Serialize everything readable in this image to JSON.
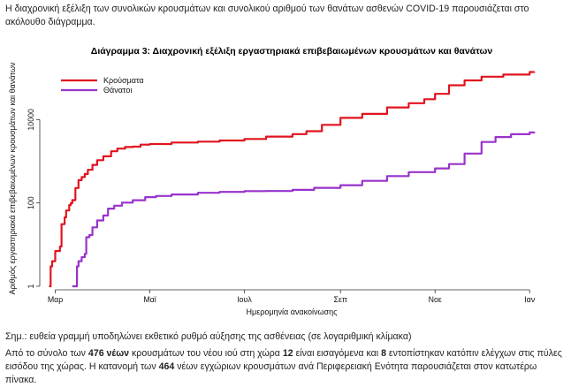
{
  "intro_text": "Η διαχρονική εξέλιξη των συνολικών κρουσμάτων και συνολικού αριθμού των θανάτων ασθενών COVID-19 παρουσιάζεται στο ακόλουθο διάγραμμα.",
  "note_text": "Σημ.: ευθεία γραμμή υποδηλώνει εκθετικό ρυθμό αύξησης της ασθένειας (σε λογαριθμική κλίμακα)",
  "outro": {
    "p1": "Από το σύνολο των ",
    "b1": "476 νέων",
    "p2": " κρουσμάτων του νέου ιού στη χώρα ",
    "b2": "12",
    "p3": " είναι εισαγόμενα και ",
    "b3": "8",
    "p4": " εντοπίστηκαν κατόπιν ελέγχων στις πύλες εισόδου της χώρας. Η κατανομή των ",
    "b4": "464",
    "p5": " νέων εγχώριων κρουσμάτων ανά Περιφερειακή Ενότητα παρουσιάζεται στον κατωτέρω πίνακα."
  },
  "chart_data": {
    "type": "line",
    "title": "Διάγραμμα 3: Διαχρονική εξέλιξη εργαστηριακά επιβεβαιωμένων κρουσμάτων και θανάτων",
    "xlabel": "Ημερομηνία ανακοίνωσης",
    "ylabel": "Αριθμός εργαστηριακά επιβεβαιωμένων κρουσμάτων και θανάτων",
    "y_scale": "log",
    "ylim": [
      1,
      200000
    ],
    "xlim": [
      "2020-02-20",
      "2021-01-10"
    ],
    "x_ticks": [
      {
        "date": "2020-03-01",
        "label": "Μαρ"
      },
      {
        "date": "2020-05-01",
        "label": "Μαϊ"
      },
      {
        "date": "2020-07-01",
        "label": "Ιουλ"
      },
      {
        "date": "2020-09-01",
        "label": "Σεπ"
      },
      {
        "date": "2020-11-01",
        "label": "Νοε"
      },
      {
        "date": "2021-01-01",
        "label": "Ιαν"
      }
    ],
    "y_ticks": [
      {
        "value": 1,
        "label": "1"
      },
      {
        "value": 100,
        "label": "100"
      },
      {
        "value": 10000,
        "label": "10000"
      }
    ],
    "legend_position": "top-left",
    "series": [
      {
        "name": "Κρούσματα",
        "color": "#e0141e",
        "points": [
          [
            "2020-02-26",
            1
          ],
          [
            "2020-02-27",
            3
          ],
          [
            "2020-02-28",
            4
          ],
          [
            "2020-03-01",
            7
          ],
          [
            "2020-03-03",
            7
          ],
          [
            "2020-03-04",
            9
          ],
          [
            "2020-03-05",
            31
          ],
          [
            "2020-03-07",
            45
          ],
          [
            "2020-03-08",
            66
          ],
          [
            "2020-03-10",
            89
          ],
          [
            "2020-03-11",
            99
          ],
          [
            "2020-03-12",
            117
          ],
          [
            "2020-03-14",
            228
          ],
          [
            "2020-03-16",
            352
          ],
          [
            "2020-03-18",
            418
          ],
          [
            "2020-03-20",
            495
          ],
          [
            "2020-03-22",
            624
          ],
          [
            "2020-03-25",
            821
          ],
          [
            "2020-03-28",
            1061
          ],
          [
            "2020-04-01",
            1314
          ],
          [
            "2020-04-06",
            1735
          ],
          [
            "2020-04-10",
            2011
          ],
          [
            "2020-04-15",
            2192
          ],
          [
            "2020-04-20",
            2245
          ],
          [
            "2020-04-25",
            2506
          ],
          [
            "2020-05-01",
            2591
          ],
          [
            "2020-05-15",
            2819
          ],
          [
            "2020-06-01",
            2952
          ],
          [
            "2020-06-15",
            3148
          ],
          [
            "2020-07-01",
            3432
          ],
          [
            "2020-07-15",
            3910
          ],
          [
            "2020-08-01",
            4477
          ],
          [
            "2020-08-10",
            5270
          ],
          [
            "2020-08-20",
            7472
          ],
          [
            "2020-09-01",
            10998
          ],
          [
            "2020-09-15",
            13730
          ],
          [
            "2020-10-01",
            19613
          ],
          [
            "2020-10-15",
            24695
          ],
          [
            "2020-10-25",
            30782
          ],
          [
            "2020-11-01",
            41527
          ],
          [
            "2020-11-10",
            66637
          ],
          [
            "2020-11-20",
            87331
          ],
          [
            "2020-12-01",
            107148
          ],
          [
            "2020-12-15",
            120374
          ],
          [
            "2021-01-01",
            138850
          ],
          [
            "2021-01-04",
            140099
          ]
        ]
      },
      {
        "name": "Θάνατοι",
        "color": "#9932cc",
        "points": [
          [
            "2020-03-12",
            1
          ],
          [
            "2020-03-14",
            1
          ],
          [
            "2020-03-15",
            3
          ],
          [
            "2020-03-16",
            4
          ],
          [
            "2020-03-18",
            5
          ],
          [
            "2020-03-19",
            5
          ],
          [
            "2020-03-20",
            6
          ],
          [
            "2020-03-21",
            15
          ],
          [
            "2020-03-23",
            17
          ],
          [
            "2020-03-25",
            26
          ],
          [
            "2020-03-28",
            38
          ],
          [
            "2020-04-01",
            50
          ],
          [
            "2020-04-04",
            73
          ],
          [
            "2020-04-08",
            86
          ],
          [
            "2020-04-13",
            102
          ],
          [
            "2020-04-20",
            116
          ],
          [
            "2020-04-28",
            138
          ],
          [
            "2020-05-05",
            147
          ],
          [
            "2020-05-15",
            160
          ],
          [
            "2020-06-01",
            175
          ],
          [
            "2020-06-15",
            184
          ],
          [
            "2020-07-01",
            192
          ],
          [
            "2020-07-15",
            193
          ],
          [
            "2020-08-01",
            206
          ],
          [
            "2020-08-15",
            230
          ],
          [
            "2020-09-01",
            266
          ],
          [
            "2020-09-15",
            338
          ],
          [
            "2020-10-01",
            441
          ],
          [
            "2020-10-15",
            549
          ],
          [
            "2020-11-01",
            673
          ],
          [
            "2020-11-10",
            858
          ],
          [
            "2020-11-20",
            1527
          ],
          [
            "2020-12-01",
            2902
          ],
          [
            "2020-12-10",
            3807
          ],
          [
            "2020-12-20",
            4465
          ],
          [
            "2021-01-01",
            4921
          ],
          [
            "2021-01-04",
            5051
          ]
        ]
      }
    ]
  }
}
